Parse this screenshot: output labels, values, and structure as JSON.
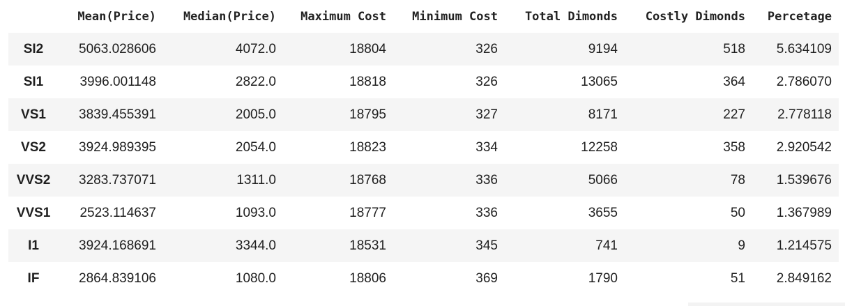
{
  "columns": [
    "",
    "Mean(Price)",
    "Median(Price)",
    "Maximum Cost",
    "Minimum Cost",
    "Total Dimonds",
    "Costly Dimonds",
    "Percetage"
  ],
  "rows": [
    {
      "label": "SI2",
      "cells": [
        "5063.028606",
        "4072.0",
        "18804",
        "326",
        "9194",
        "518",
        "5.634109"
      ]
    },
    {
      "label": "SI1",
      "cells": [
        "3996.001148",
        "2822.0",
        "18818",
        "326",
        "13065",
        "364",
        "2.786070"
      ]
    },
    {
      "label": "VS1",
      "cells": [
        "3839.455391",
        "2005.0",
        "18795",
        "327",
        "8171",
        "227",
        "2.778118"
      ]
    },
    {
      "label": "VS2",
      "cells": [
        "3924.989395",
        "2054.0",
        "18823",
        "334",
        "12258",
        "358",
        "2.920542"
      ]
    },
    {
      "label": "VVS2",
      "cells": [
        "3283.737071",
        "1311.0",
        "18768",
        "336",
        "5066",
        "78",
        "1.539676"
      ]
    },
    {
      "label": "VVS1",
      "cells": [
        "2523.114637",
        "1093.0",
        "18777",
        "336",
        "3655",
        "50",
        "1.367989"
      ]
    },
    {
      "label": "I1",
      "cells": [
        "3924.168691",
        "3344.0",
        "18531",
        "345",
        "741",
        "9",
        "1.214575"
      ]
    },
    {
      "label": "IF",
      "cells": [
        "2864.839106",
        "1080.0",
        "18806",
        "369",
        "1790",
        "51",
        "2.849162"
      ]
    }
  ]
}
